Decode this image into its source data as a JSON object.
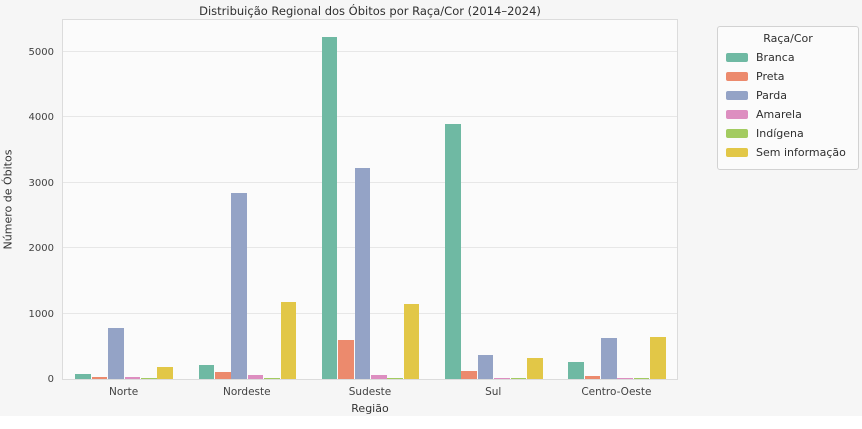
{
  "chart_data": {
    "type": "bar",
    "title": "Distribuição Regional dos Óbitos por Raça/Cor (2014–2024)",
    "xlabel": "Região",
    "ylabel": "Número de Óbitos",
    "legend_title": "Raça/Cor",
    "legend_position": "upper right, outside plot",
    "grid": true,
    "categories": [
      "Norte",
      "Nordeste",
      "Sudeste",
      "Sul",
      "Centro-Oeste"
    ],
    "series": [
      {
        "name": "Branca",
        "color": "#6fb9a3",
        "values": [
          80,
          220,
          5230,
          3900,
          260
        ]
      },
      {
        "name": "Preta",
        "color": "#ec8a6d",
        "values": [
          25,
          105,
          600,
          130,
          40
        ]
      },
      {
        "name": "Parda",
        "color": "#94a3c6",
        "values": [
          780,
          2840,
          3220,
          360,
          620
        ]
      },
      {
        "name": "Amarela",
        "color": "#dd8ec0",
        "values": [
          30,
          60,
          62,
          22,
          12
        ]
      },
      {
        "name": "Indígena",
        "color": "#a3cb60",
        "values": [
          8,
          12,
          15,
          8,
          8
        ]
      },
      {
        "name": "Sem informação",
        "color": "#e2c747",
        "values": [
          185,
          1170,
          1140,
          320,
          640
        ]
      }
    ],
    "yticks": [
      0,
      1000,
      2000,
      3000,
      4000,
      5000
    ],
    "ylim": [
      0,
      5520
    ]
  },
  "style_colors": {
    "figure_background": "#f6f6f6",
    "plot_background": "#fbfbfb",
    "gridline": "#e7e7e7",
    "plot_border": "#dcdcdc",
    "text": "#2f2f2f"
  }
}
